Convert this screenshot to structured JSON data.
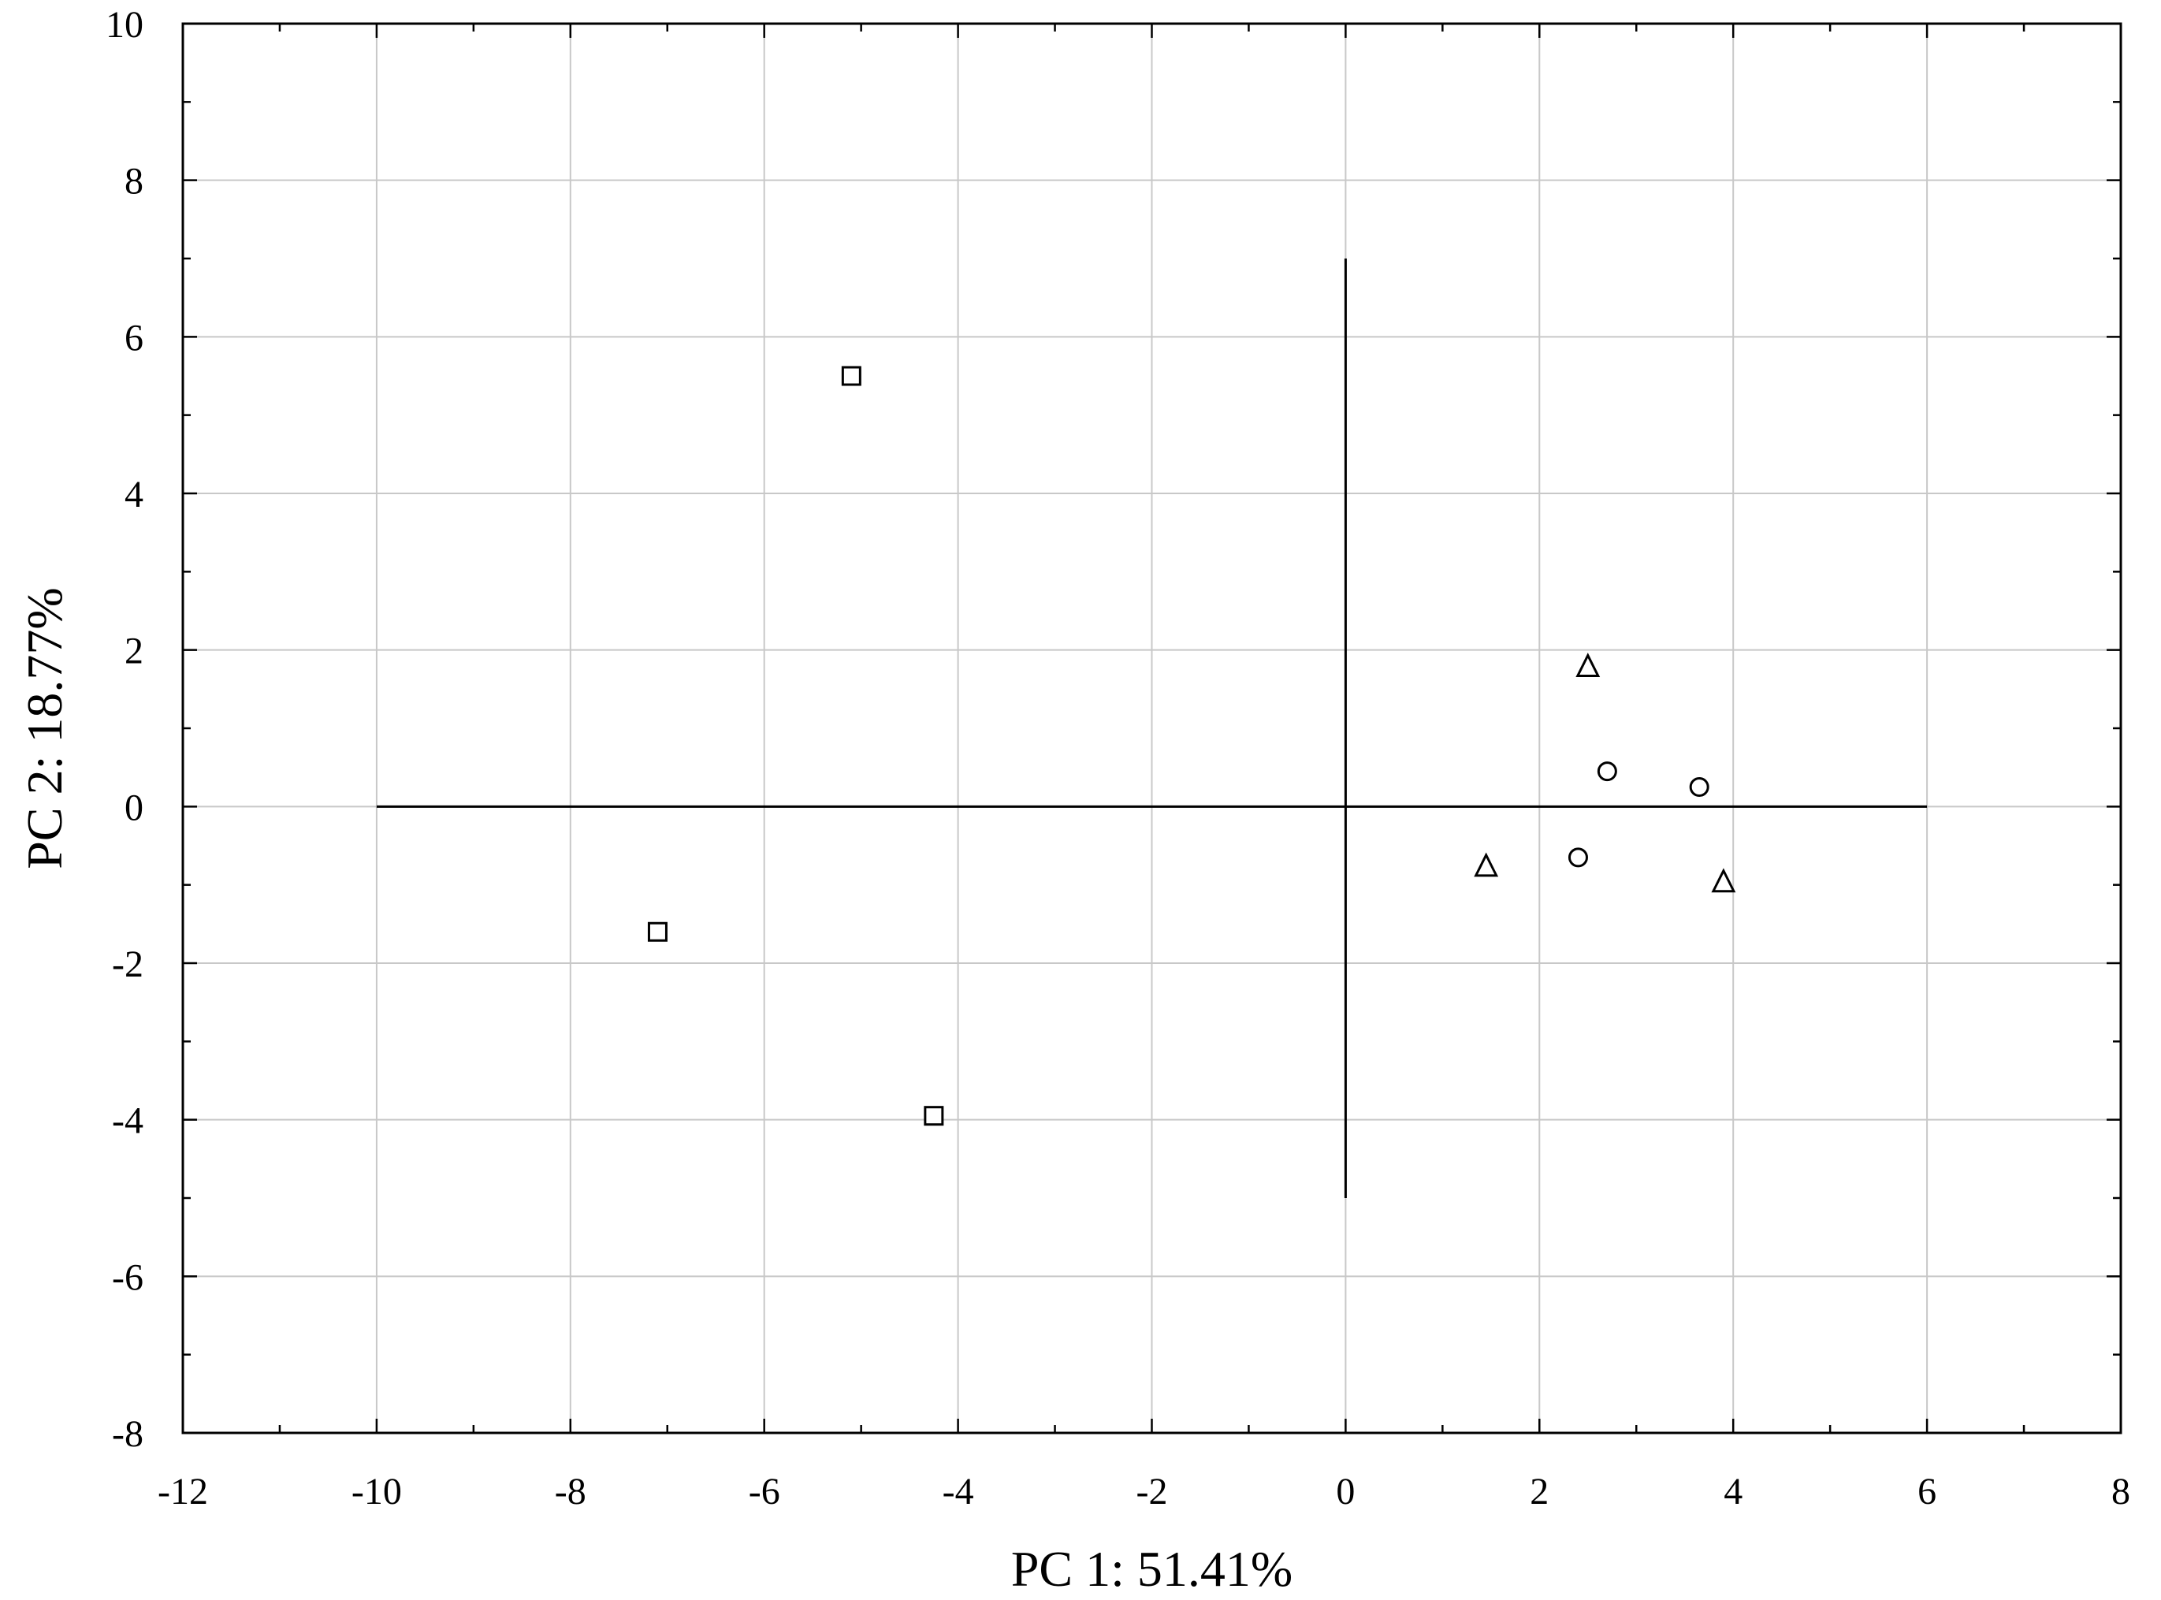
{
  "chart_data": {
    "type": "scatter",
    "title": "",
    "xlabel": "PC 1: 51.41%",
    "ylabel": "PC 2: 18.77%",
    "xlim": [
      -12,
      8
    ],
    "ylim": [
      -8,
      10
    ],
    "x_ticks": [
      -12,
      -10,
      -8,
      -6,
      -4,
      -2,
      0,
      2,
      4,
      6,
      8
    ],
    "y_ticks": [
      -8,
      -6,
      -4,
      -2,
      0,
      2,
      4,
      6,
      8,
      10
    ],
    "x_tick_labels": [
      "-12",
      "-10",
      "-8",
      "-6",
      "-4",
      "-2",
      "0",
      "2",
      "4",
      "6",
      "8"
    ],
    "y_tick_labels": [
      "-8",
      "-6",
      "-4",
      "-2",
      "0",
      "2",
      "4",
      "6",
      "8",
      "10"
    ],
    "grid": true,
    "reference_lines": [
      {
        "orientation": "horizontal",
        "y": 0,
        "x_from": -10,
        "x_to": 6
      },
      {
        "orientation": "vertical",
        "x": 0,
        "y_from": -5,
        "y_to": 7
      }
    ],
    "series": [
      {
        "marker": "square",
        "points": [
          {
            "x": -5.1,
            "y": 5.5
          },
          {
            "x": -7.1,
            "y": -1.6
          },
          {
            "x": -4.25,
            "y": -3.95
          }
        ]
      },
      {
        "marker": "triangle",
        "points": [
          {
            "x": 2.5,
            "y": 1.8
          },
          {
            "x": 1.45,
            "y": -0.75
          },
          {
            "x": 3.9,
            "y": -0.95
          }
        ]
      },
      {
        "marker": "circle",
        "points": [
          {
            "x": 2.7,
            "y": 0.45
          },
          {
            "x": 3.65,
            "y": 0.25
          },
          {
            "x": 2.4,
            "y": -0.65
          }
        ]
      }
    ]
  }
}
